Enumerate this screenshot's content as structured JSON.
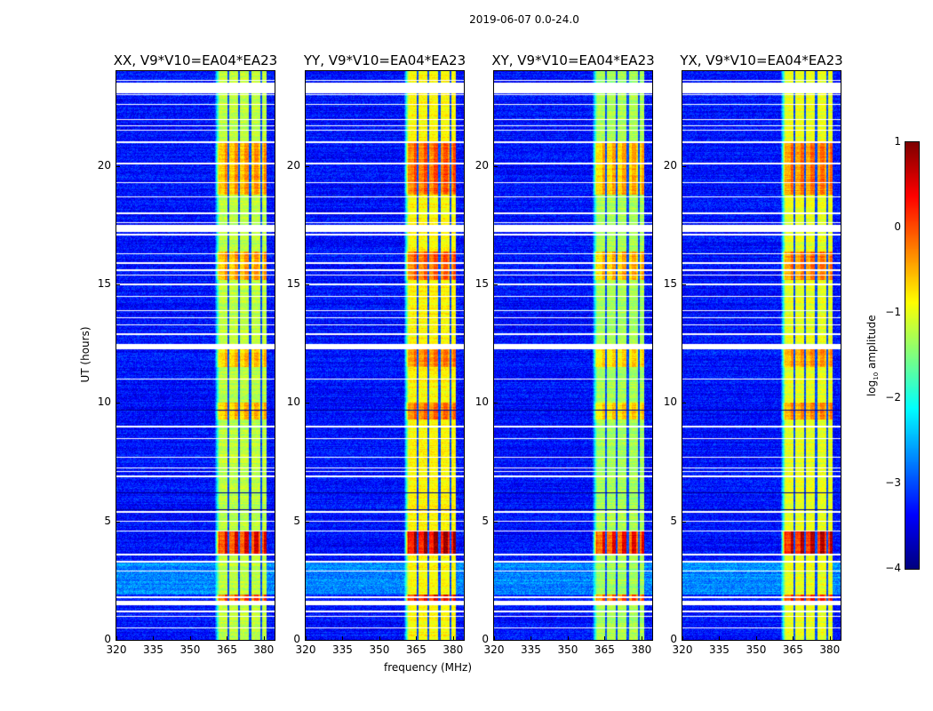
{
  "chart_data": {
    "type": "heatmap",
    "title": "2019-06-07 0.0-24.0",
    "xlabel": "frequency (MHz)",
    "ylabel": "UT (hours)",
    "xlim": [
      320,
      384.4
    ],
    "ylim": [
      0,
      24
    ],
    "xticks": [
      320,
      335,
      350,
      365,
      380
    ],
    "yticks": [
      0,
      5,
      10,
      15,
      20
    ],
    "colormap": "jet",
    "colorbar": {
      "label": "log10 amplitude",
      "label_main": "log",
      "label_sub": "10",
      "label_tail": " amplitude",
      "range": [
        -4,
        1
      ],
      "ticks": [
        1,
        0,
        -1,
        -2,
        -3,
        -4
      ]
    },
    "panels": [
      {
        "title": "XX, V9*V10=EA04*EA23",
        "level_offset": 0.0
      },
      {
        "title": "YY, V9*V10=EA04*EA23",
        "level_offset": 0.35
      },
      {
        "title": "XY, V9*V10=EA04*EA23",
        "level_offset": -0.1
      },
      {
        "title": "YX, V9*V10=EA04*EA23",
        "level_offset": 0.2
      }
    ],
    "background_level": -3.3,
    "rfi_band_mhz": [
      361,
      381
    ],
    "rfi_band_level": -1.2,
    "rfi_band_dark_channels_mhz": [
      365.5,
      370,
      374.5,
      379
    ],
    "hot_intervals_hours": [
      [
        1.6,
        1.9,
        0.2
      ],
      [
        3.6,
        4.6,
        0.6
      ],
      [
        9.3,
        10.0,
        -0.4
      ],
      [
        15.2,
        16.4,
        -0.3
      ],
      [
        18.8,
        21.0,
        -0.3
      ],
      [
        11.5,
        12.3,
        -0.5
      ]
    ],
    "bright_background_hours": [
      [
        1.9,
        3.3,
        0.6
      ]
    ],
    "flagged_hours": [
      0.5,
      1.0,
      1.2,
      1.5,
      1.6,
      1.8,
      2.9,
      3.3,
      3.6,
      4.6,
      5.0,
      5.4,
      6.9,
      7.1,
      7.25,
      7.7,
      8.5,
      9.0,
      11.0,
      12.3,
      12.45,
      12.9,
      13.3,
      13.6,
      13.9,
      14.5,
      15.0,
      15.4,
      15.6,
      15.9,
      16.3,
      17.1,
      17.25,
      17.6,
      18.0,
      18.7,
      19.3,
      20.1,
      21.0,
      21.5,
      21.7,
      21.95,
      22.6,
      23.0,
      23.6
    ],
    "flagged_wide_hours": [
      [
        1.45,
        1.65
      ],
      [
        17.2,
        17.5
      ],
      [
        23.05,
        23.5
      ],
      [
        12.35,
        12.5
      ]
    ],
    "dark_rows_hours": [
      5.5,
      6.2,
      9.7
    ]
  }
}
